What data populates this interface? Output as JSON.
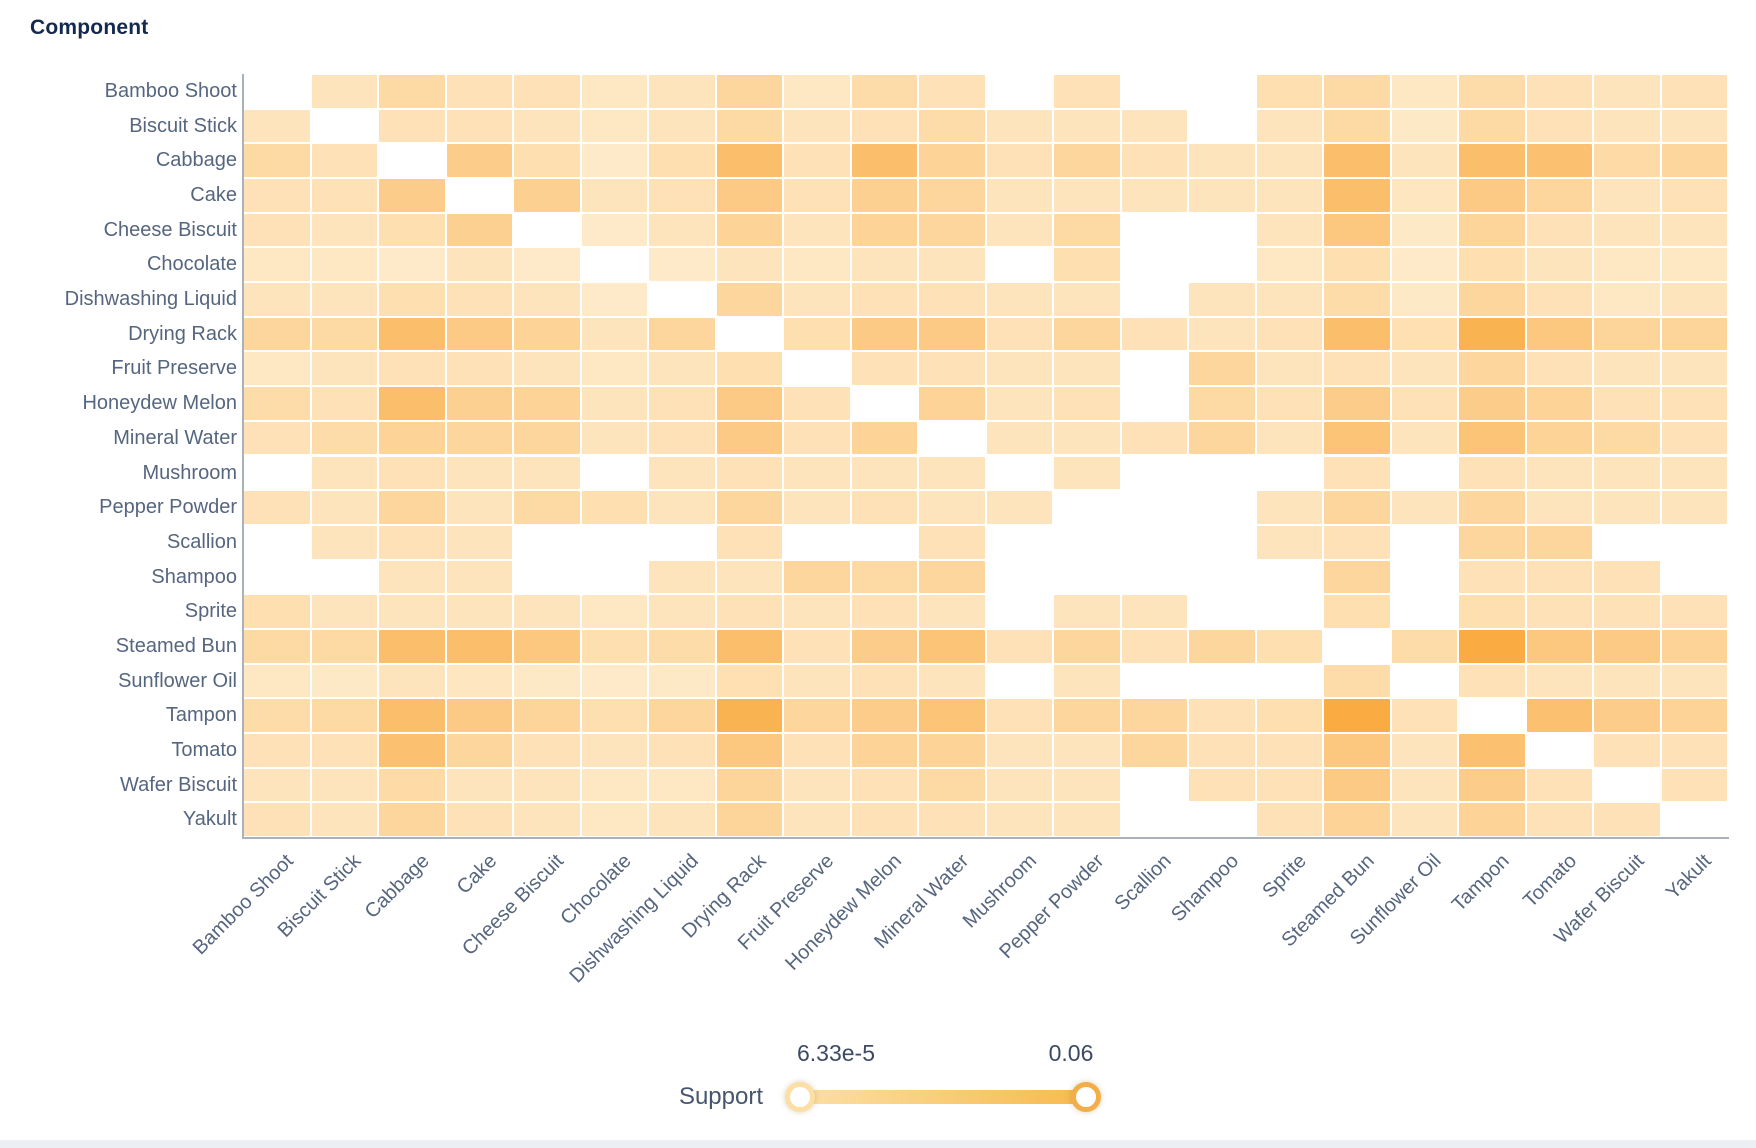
{
  "title": "Component",
  "chart_data": {
    "type": "heatmap",
    "title": "Component",
    "xlabel": "",
    "ylabel": "",
    "categories": [
      "Bamboo Shoot",
      "Biscuit Stick",
      "Cabbage",
      "Cake",
      "Cheese Biscuit",
      "Chocolate",
      "Dishwashing Liquid",
      "Drying Rack",
      "Fruit Preserve",
      "Honeydew Melon",
      "Mineral Water",
      "Mushroom",
      "Pepper Powder",
      "Scallion",
      "Shampoo",
      "Sprite",
      "Steamed Bun",
      "Sunflower Oil",
      "Tampon",
      "Tomato",
      "Wafer Biscuit",
      "Yakult"
    ],
    "value_name": "Support",
    "value_range": [
      6.33e-05,
      0.06
    ],
    "note": "null means no cell drawn (white). Values are estimated support levels read from cell color intensity.",
    "matrix": [
      [
        null,
        0.016,
        0.024,
        0.018,
        0.018,
        0.014,
        0.016,
        0.026,
        0.014,
        0.022,
        0.018,
        null,
        0.018,
        null,
        null,
        0.02,
        0.024,
        0.014,
        0.022,
        0.018,
        0.016,
        0.018
      ],
      [
        0.016,
        null,
        0.018,
        0.018,
        0.016,
        0.014,
        0.016,
        0.024,
        0.016,
        0.018,
        0.022,
        0.016,
        0.016,
        0.016,
        null,
        0.016,
        0.024,
        0.013,
        0.024,
        0.018,
        0.016,
        0.016
      ],
      [
        0.024,
        0.018,
        null,
        0.032,
        0.02,
        0.012,
        0.02,
        0.042,
        0.018,
        0.042,
        0.028,
        0.018,
        0.026,
        0.018,
        0.016,
        0.016,
        0.042,
        0.016,
        0.042,
        0.04,
        0.023,
        0.026
      ],
      [
        0.018,
        0.018,
        0.032,
        null,
        0.03,
        0.016,
        0.018,
        0.034,
        0.018,
        0.03,
        0.026,
        0.016,
        0.016,
        0.016,
        0.016,
        0.016,
        0.042,
        0.015,
        0.034,
        0.026,
        0.016,
        0.018
      ],
      [
        0.018,
        0.016,
        0.02,
        0.03,
        null,
        0.012,
        0.016,
        0.028,
        0.016,
        0.028,
        0.026,
        0.016,
        0.024,
        null,
        null,
        0.016,
        0.036,
        0.013,
        0.027,
        0.018,
        0.016,
        0.016
      ],
      [
        0.014,
        0.014,
        0.012,
        0.016,
        0.012,
        null,
        0.012,
        0.016,
        0.014,
        0.016,
        0.016,
        null,
        0.02,
        null,
        null,
        0.014,
        0.02,
        0.012,
        0.02,
        0.016,
        0.014,
        0.014
      ],
      [
        0.016,
        0.016,
        0.02,
        0.018,
        0.016,
        0.012,
        null,
        0.026,
        0.016,
        0.018,
        0.018,
        0.016,
        0.016,
        null,
        0.016,
        0.016,
        0.022,
        0.013,
        0.026,
        0.018,
        0.014,
        0.016
      ],
      [
        0.026,
        0.024,
        0.042,
        0.034,
        0.028,
        0.016,
        0.026,
        null,
        0.02,
        0.034,
        0.034,
        0.018,
        0.026,
        0.018,
        0.016,
        0.018,
        0.042,
        0.019,
        0.05,
        0.036,
        0.027,
        0.027
      ],
      [
        0.014,
        0.016,
        0.018,
        0.018,
        0.016,
        0.014,
        0.016,
        0.02,
        null,
        0.018,
        0.018,
        0.016,
        0.016,
        null,
        0.026,
        0.016,
        0.018,
        0.016,
        0.026,
        0.018,
        0.016,
        0.016
      ],
      [
        0.022,
        0.018,
        0.042,
        0.03,
        0.028,
        0.016,
        0.018,
        0.034,
        0.018,
        null,
        0.028,
        0.016,
        0.018,
        null,
        0.024,
        0.018,
        0.032,
        0.018,
        0.032,
        0.028,
        0.018,
        0.018
      ],
      [
        0.018,
        0.022,
        0.028,
        0.026,
        0.026,
        0.016,
        0.018,
        0.034,
        0.018,
        0.028,
        null,
        0.016,
        0.016,
        0.018,
        0.026,
        0.016,
        0.038,
        0.016,
        0.038,
        0.028,
        0.024,
        0.018
      ],
      [
        null,
        0.016,
        0.018,
        0.016,
        0.016,
        null,
        0.016,
        0.018,
        0.016,
        0.016,
        0.016,
        null,
        0.016,
        null,
        null,
        null,
        0.018,
        null,
        0.018,
        0.016,
        0.016,
        0.016
      ],
      [
        0.018,
        0.016,
        0.026,
        0.016,
        0.024,
        0.02,
        0.016,
        0.026,
        0.016,
        0.018,
        0.016,
        0.016,
        null,
        null,
        null,
        0.016,
        0.026,
        0.016,
        0.026,
        0.016,
        0.016,
        0.016
      ],
      [
        null,
        0.016,
        0.018,
        0.016,
        null,
        null,
        null,
        0.018,
        null,
        null,
        0.018,
        null,
        null,
        null,
        null,
        0.016,
        0.018,
        null,
        0.026,
        0.026,
        null,
        null
      ],
      [
        null,
        null,
        0.016,
        0.016,
        null,
        null,
        0.016,
        0.016,
        0.026,
        0.024,
        0.026,
        null,
        null,
        null,
        null,
        null,
        0.026,
        null,
        0.018,
        0.018,
        0.018,
        null
      ],
      [
        0.02,
        0.016,
        0.016,
        0.016,
        0.016,
        0.014,
        0.016,
        0.018,
        0.016,
        0.018,
        0.016,
        null,
        0.016,
        0.016,
        null,
        null,
        0.02,
        null,
        0.02,
        0.018,
        0.018,
        0.018
      ],
      [
        0.024,
        0.024,
        0.042,
        0.042,
        0.036,
        0.02,
        0.022,
        0.042,
        0.018,
        0.032,
        0.038,
        0.018,
        0.026,
        0.018,
        0.026,
        0.02,
        null,
        0.022,
        0.055,
        0.036,
        0.034,
        0.028
      ],
      [
        0.014,
        0.013,
        0.016,
        0.015,
        0.013,
        0.012,
        0.013,
        0.019,
        0.016,
        0.018,
        0.016,
        null,
        0.016,
        null,
        null,
        null,
        0.022,
        null,
        0.018,
        0.016,
        0.016,
        0.016
      ],
      [
        0.022,
        0.024,
        0.042,
        0.034,
        0.027,
        0.02,
        0.026,
        0.05,
        0.026,
        0.032,
        0.038,
        0.018,
        0.026,
        0.026,
        0.018,
        0.02,
        0.055,
        0.018,
        null,
        0.04,
        0.032,
        0.028
      ],
      [
        0.018,
        0.018,
        0.04,
        0.026,
        0.018,
        0.016,
        0.018,
        0.036,
        0.018,
        0.028,
        0.028,
        0.016,
        0.016,
        0.026,
        0.018,
        0.018,
        0.036,
        0.016,
        0.04,
        null,
        0.018,
        0.018
      ],
      [
        0.016,
        0.016,
        0.023,
        0.016,
        0.016,
        0.014,
        0.014,
        0.027,
        0.016,
        0.018,
        0.024,
        0.016,
        0.016,
        null,
        0.018,
        0.018,
        0.034,
        0.016,
        0.032,
        0.018,
        null,
        0.018
      ],
      [
        0.018,
        0.016,
        0.026,
        0.018,
        0.016,
        0.014,
        0.016,
        0.027,
        0.016,
        0.018,
        0.018,
        0.016,
        0.016,
        null,
        null,
        0.018,
        0.028,
        0.016,
        0.028,
        0.018,
        0.018,
        null
      ]
    ],
    "legend": {
      "label": "Support",
      "min_label": "6.33e-5",
      "max_label": "0.06",
      "position": "bottom-center"
    },
    "layout_hints": {
      "x_label_rotation_deg": 45,
      "grid_gridlines": false,
      "missing_cells_rendered_as": "white"
    }
  },
  "colors": {
    "color_scale_low": "#FFF3DC",
    "color_scale_high": "#F9A432",
    "title_text": "#13294e",
    "axis_label_text": "#56667f",
    "axis_line": "#a9b1bd",
    "legend_text": "#45566e",
    "legend_value_text": "#3c4b63",
    "track_gradient_from": "#FCE0A8",
    "track_gradient_to": "#F7BA4E",
    "handle_min_ring": "#FBDFA5",
    "handle_max_ring": "#F3AE49",
    "bottom_bar": "#ECEFF4"
  }
}
